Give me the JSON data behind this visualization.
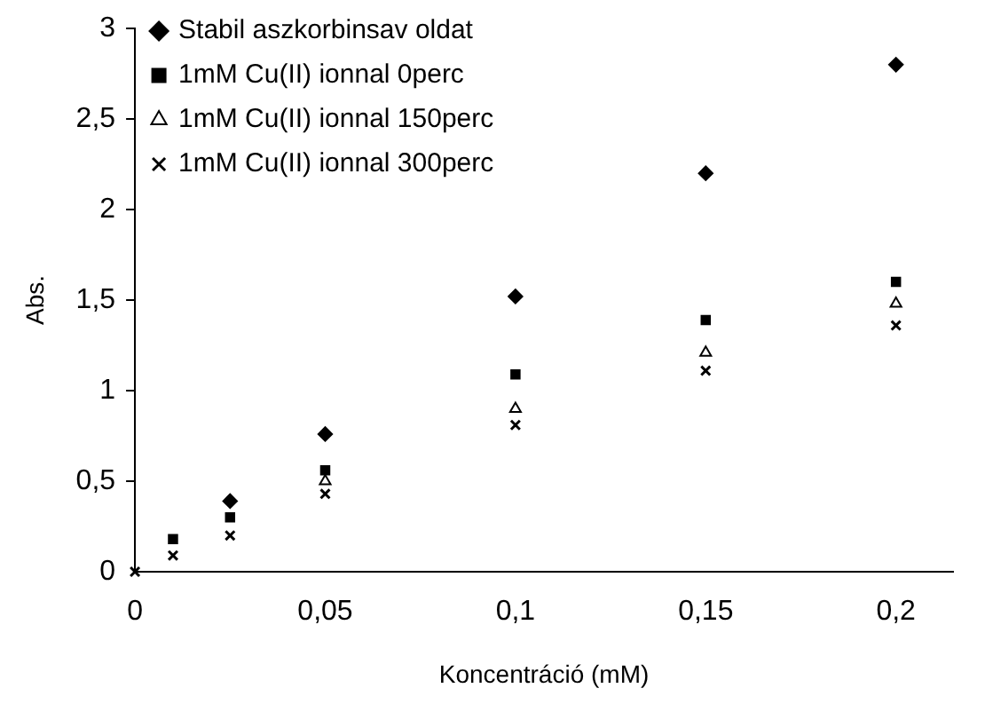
{
  "chart_data": {
    "type": "scatter",
    "xlabel": "Koncentráció (mM)",
    "ylabel": "Abs.",
    "x": [
      0,
      0.01,
      0.025,
      0.05,
      0.1,
      0.15,
      0.2
    ],
    "series": [
      {
        "name": "Stabil aszkorbinsav oldat",
        "color": "#000000",
        "marker": "diamond",
        "values": [
          null,
          null,
          0.39,
          0.76,
          1.52,
          2.2,
          2.8
        ]
      },
      {
        "name": "1mM Cu(II) ionnal 0perc",
        "color": "#000000",
        "marker": "square",
        "values": [
          null,
          0.18,
          0.3,
          0.56,
          1.09,
          1.39,
          1.6
        ]
      },
      {
        "name": "1mM Cu(II) ionnal 150perc",
        "color": "#000000",
        "marker": "triangle",
        "values": [
          null,
          null,
          null,
          0.5,
          0.9,
          1.21,
          1.48
        ]
      },
      {
        "name": "1mM Cu(II) ionnal 300perc",
        "color": "#000000",
        "marker": "cross",
        "values": [
          0,
          0.09,
          0.2,
          0.43,
          0.81,
          1.11,
          1.36
        ]
      }
    ],
    "xlim": [
      0,
      0.215
    ],
    "ylim": [
      0,
      3
    ],
    "xticks": [
      0,
      {
        "value": 0.05,
        "label": "0,05"
      },
      {
        "value": 0.1,
        "label": "0,1"
      },
      {
        "value": 0.15,
        "label": "0,15"
      },
      {
        "value": 0.2,
        "label": "0,2"
      }
    ],
    "yticks": [
      0,
      {
        "value": 0.5,
        "label": "0,5"
      },
      1,
      {
        "value": 1.5,
        "label": "1,5"
      },
      2,
      {
        "value": 2.5,
        "label": "2,5"
      },
      3
    ],
    "grid": false,
    "legend": "top left"
  }
}
